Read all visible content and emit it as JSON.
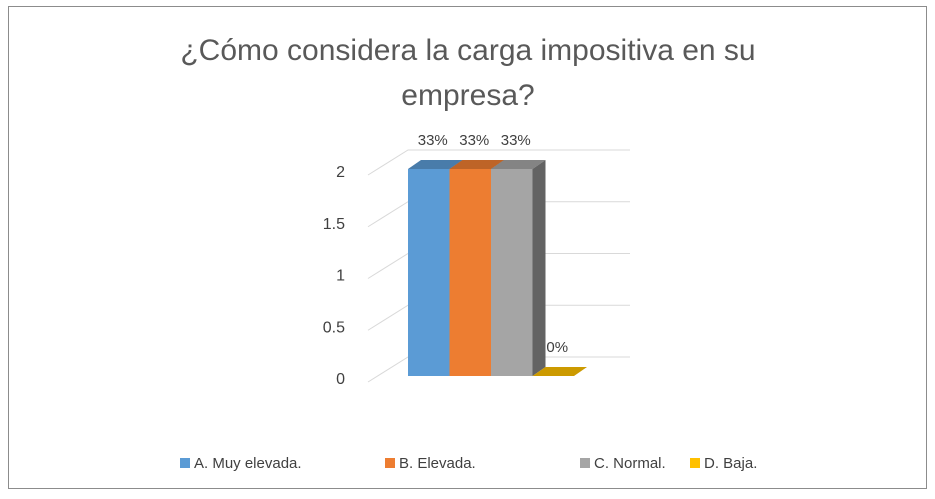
{
  "chart_data": {
    "type": "bar",
    "title": "¿Cómo considera la carga impositiva en su empresa?",
    "categories": [
      null
    ],
    "series": [
      {
        "name": "A. Muy elevada.",
        "color": "#5b9bd5",
        "values": [
          2
        ],
        "value_labels": [
          "33%"
        ]
      },
      {
        "name": "B. Elevada.",
        "color": "#ed7d31",
        "values": [
          2
        ],
        "value_labels": [
          "33%"
        ]
      },
      {
        "name": "C. Normal.",
        "color": "#a5a5a5",
        "values": [
          2
        ],
        "value_labels": [
          "33%"
        ]
      },
      {
        "name": "D. Baja.",
        "color": "#ffc000",
        "values": [
          0
        ],
        "value_labels": [
          "0%"
        ]
      }
    ],
    "ylim": [
      0,
      2
    ],
    "yticks": [
      0,
      0.5,
      1,
      1.5,
      2
    ],
    "grid": true,
    "legend": "bottom"
  }
}
